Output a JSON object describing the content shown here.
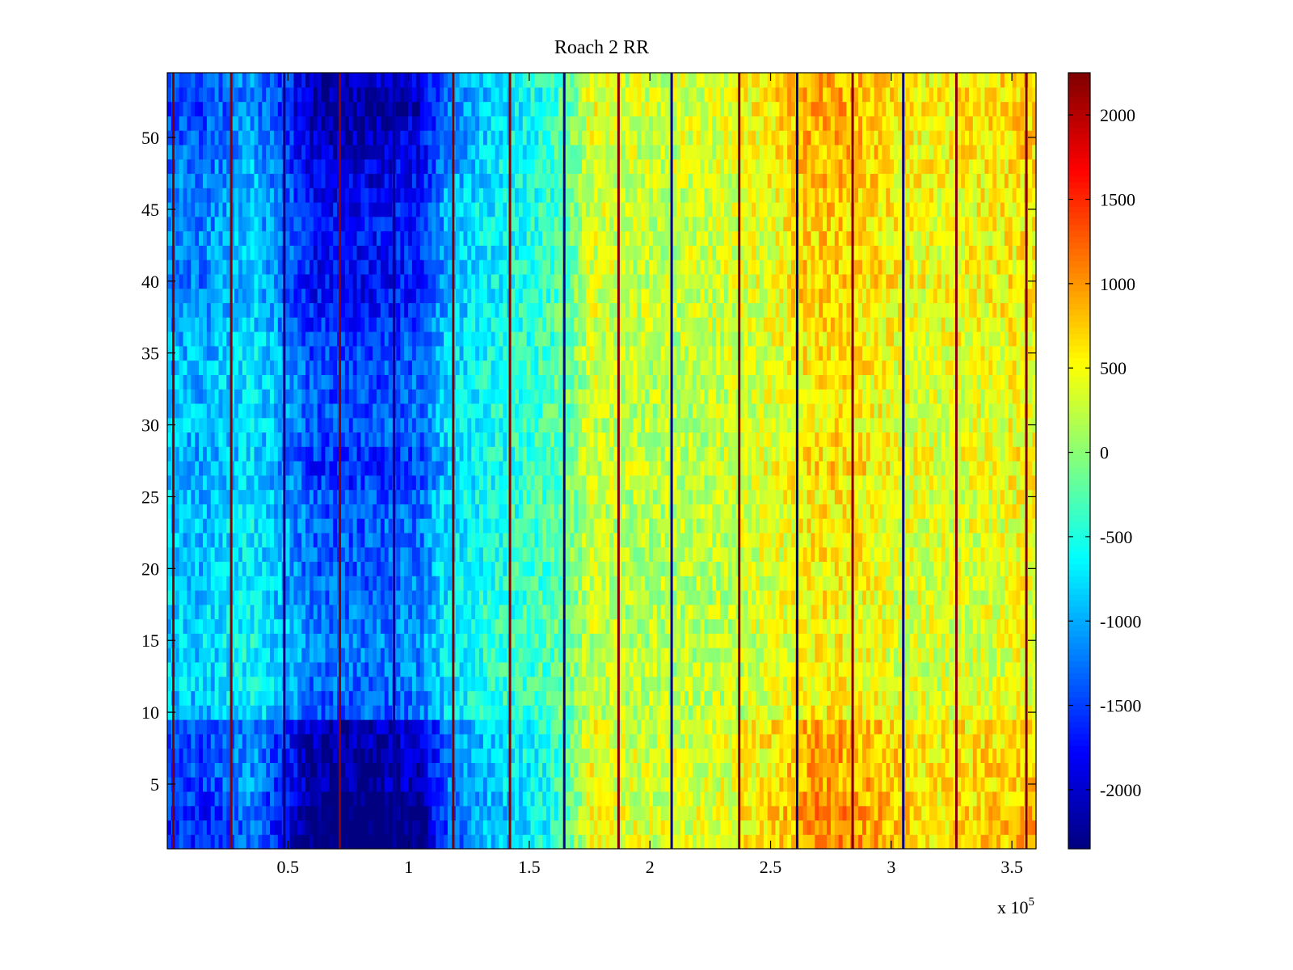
{
  "chart_data": {
    "type": "heatmap",
    "title": "Roach 2 RR",
    "xlabel": "",
    "ylabel": "",
    "xlim": [
      0,
      360000
    ],
    "ylim": [
      0.5,
      54.5
    ],
    "x_exponent_label": "x 10",
    "x_exponent_power": "5",
    "x_ticks": [
      {
        "value": 50000,
        "label": "0.5"
      },
      {
        "value": 100000,
        "label": "1"
      },
      {
        "value": 150000,
        "label": "1.5"
      },
      {
        "value": 200000,
        "label": "2"
      },
      {
        "value": 250000,
        "label": "2.5"
      },
      {
        "value": 300000,
        "label": "3"
      },
      {
        "value": 350000,
        "label": "3.5"
      }
    ],
    "y_ticks": [
      {
        "value": 5,
        "label": "5"
      },
      {
        "value": 10,
        "label": "10"
      },
      {
        "value": 15,
        "label": "15"
      },
      {
        "value": 20,
        "label": "20"
      },
      {
        "value": 25,
        "label": "25"
      },
      {
        "value": 30,
        "label": "30"
      },
      {
        "value": 35,
        "label": "35"
      },
      {
        "value": 40,
        "label": "40"
      },
      {
        "value": 45,
        "label": "45"
      },
      {
        "value": 50,
        "label": "50"
      }
    ],
    "colorbar": {
      "colormap": "jet",
      "clim": [
        -2350,
        2250
      ],
      "ticks": [
        {
          "value": 2000,
          "label": "2000"
        },
        {
          "value": 1500,
          "label": "1500"
        },
        {
          "value": 1000,
          "label": "1000"
        },
        {
          "value": 500,
          "label": "500"
        },
        {
          "value": 0,
          "label": "0"
        },
        {
          "value": -500,
          "label": "-500"
        },
        {
          "value": -1000,
          "label": "-1000"
        },
        {
          "value": -1500,
          "label": "-1500"
        },
        {
          "value": -2000,
          "label": "-2000"
        }
      ]
    },
    "rows": 54,
    "column_profile": {
      "x": [
        0,
        15000,
        25000,
        35000,
        50000,
        60000,
        75000,
        90000,
        105000,
        115000,
        130000,
        145000,
        160000,
        170000,
        175000,
        190000,
        210000,
        230000,
        250000,
        265000,
        275000,
        290000,
        305000,
        320000,
        340000,
        360000
      ],
      "value": [
        -1100,
        -1150,
        -1000,
        -850,
        -1300,
        -1700,
        -1750,
        -1700,
        -1550,
        -1000,
        -700,
        -550,
        -350,
        0,
        350,
        250,
        250,
        300,
        450,
        700,
        750,
        650,
        500,
        450,
        500,
        600
      ]
    },
    "row_modulation": {
      "row": [
        1,
        3,
        5,
        7,
        9,
        10,
        12,
        15,
        20,
        25,
        27,
        28,
        30,
        35,
        40,
        43,
        46,
        50,
        52,
        54
      ],
      "factor": [
        1.45,
        1.45,
        1.3,
        1.3,
        1.25,
        0.8,
        0.75,
        0.7,
        0.78,
        0.8,
        0.95,
        0.9,
        0.8,
        0.85,
        1.05,
        1.0,
        1.05,
        1.2,
        1.3,
        1.2
      ]
    },
    "vertical_lines": [
      {
        "x": 2500,
        "value": 2250
      },
      {
        "x": 26500,
        "value": 2200
      },
      {
        "x": 48500,
        "value": -2300
      },
      {
        "x": 71500,
        "value": 2200
      },
      {
        "x": 94000,
        "value": -2200
      },
      {
        "x": 118500,
        "value": 2250
      },
      {
        "x": 142000,
        "value": 2200
      },
      {
        "x": 164500,
        "value": -2300
      },
      {
        "x": 187000,
        "value": 2200
      },
      {
        "x": 209000,
        "value": -2300
      },
      {
        "x": 237000,
        "value": 2250
      },
      {
        "x": 261000,
        "value": -2300
      },
      {
        "x": 284000,
        "value": 2200
      },
      {
        "x": 305000,
        "value": -2300
      },
      {
        "x": 327000,
        "value": 2200
      },
      {
        "x": 356000,
        "value": 2250
      }
    ]
  }
}
